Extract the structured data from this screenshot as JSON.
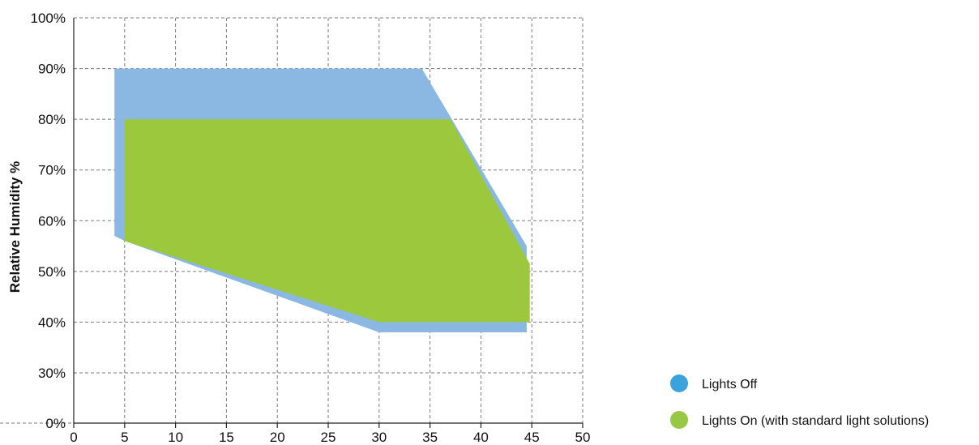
{
  "chart_data": {
    "type": "area",
    "title": "",
    "xlabel": "",
    "ylabel": "Relative Humidity %",
    "xlim": [
      0,
      50
    ],
    "ylim": [
      0,
      100
    ],
    "x_ticks": [
      0,
      5,
      10,
      15,
      20,
      25,
      30,
      35,
      40,
      45,
      50
    ],
    "y_ticks": [
      0,
      10,
      20,
      30,
      40,
      50,
      60,
      70,
      80,
      90,
      100
    ],
    "x_tick_labels": [
      "0",
      "5",
      "10",
      "15",
      "20",
      "25",
      "30",
      "35",
      "40",
      "45",
      "50"
    ],
    "y_tick_labels": [
      "0%",
      "10%",
      "20%",
      "30%",
      "40%",
      "50%",
      "60%",
      "70%",
      "80%",
      "90%",
      "100%"
    ],
    "y_scale": "linear with 0% to 30% gap shown at equal spacing",
    "grid": true,
    "legend_position": "bottom-right",
    "series": [
      {
        "name": "Lights Off",
        "color": "#8ab8e2",
        "legend_color": "#3ba3dc",
        "points": [
          [
            4,
            57
          ],
          [
            4,
            90
          ],
          [
            34.2,
            90
          ],
          [
            44.5,
            55
          ],
          [
            44.5,
            38
          ],
          [
            30,
            38
          ],
          [
            5,
            56
          ]
        ]
      },
      {
        "name": "Lights On (with standard light solutions)",
        "color": "#9bc83c",
        "legend_color": "#97c843",
        "points": [
          [
            5,
            56
          ],
          [
            5,
            80
          ],
          [
            37,
            80
          ],
          [
            44.8,
            51.5
          ],
          [
            44.8,
            40
          ],
          [
            30,
            40
          ]
        ]
      }
    ]
  }
}
